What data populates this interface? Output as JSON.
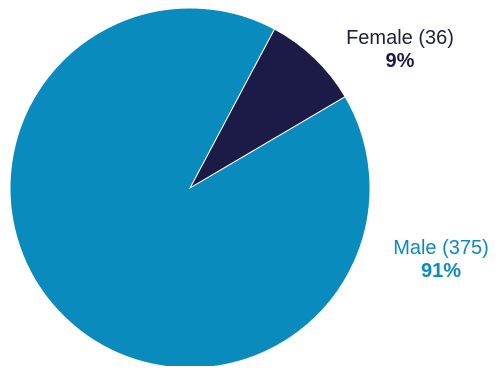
{
  "chart_data": {
    "type": "pie",
    "title": "",
    "slices": [
      {
        "label": "Female (36)",
        "category": "Female",
        "count": 36,
        "percent_label": "9%",
        "value": 36,
        "color": "#1c1a47"
      },
      {
        "label": "Male (375)",
        "category": "Male",
        "count": 375,
        "percent_label": "91%",
        "value": 375,
        "color": "#0a8bbd"
      }
    ],
    "start_angle_deg": 28
  },
  "colors": {
    "female": "#1c1a47",
    "male": "#0a8bbd",
    "background": "#ffffff"
  }
}
